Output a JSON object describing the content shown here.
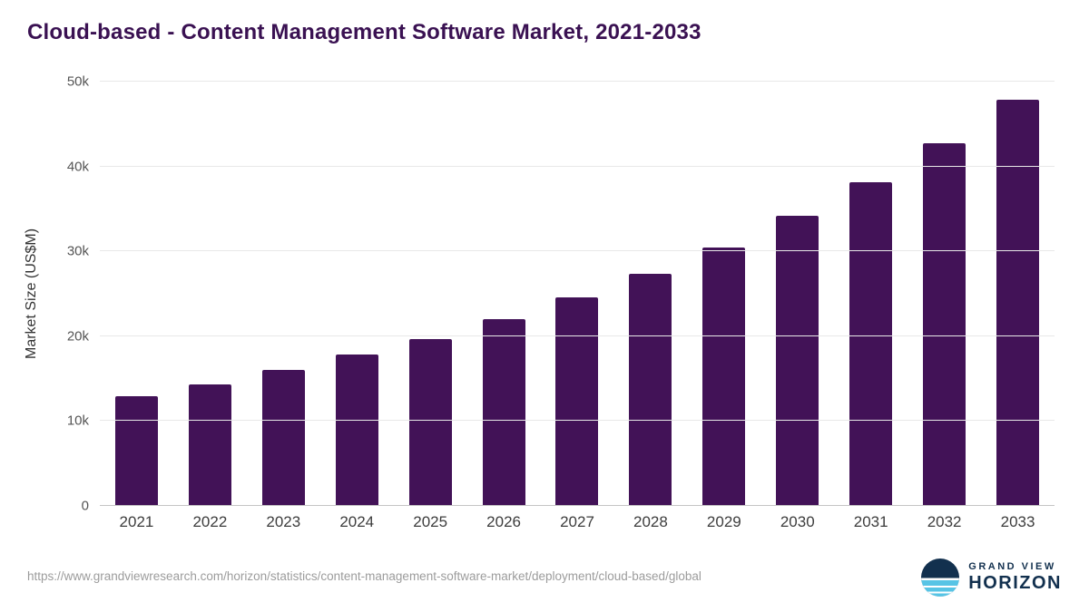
{
  "chart_data": {
    "type": "bar",
    "title": "Cloud-based - Content Management Software Market, 2021-2033",
    "categories": [
      "2021",
      "2022",
      "2023",
      "2024",
      "2025",
      "2026",
      "2027",
      "2028",
      "2029",
      "2030",
      "2031",
      "2032",
      "2033"
    ],
    "values": [
      12900,
      14300,
      16000,
      17800,
      19700,
      22000,
      24600,
      27400,
      30500,
      34200,
      38100,
      42700,
      47900
    ],
    "xlabel": "",
    "ylabel": "Market Size (US$M)",
    "ylim": [
      0,
      50000
    ],
    "yticks": [
      0,
      10000,
      20000,
      30000,
      40000,
      50000
    ],
    "ytick_labels": [
      "0",
      "10k",
      "20k",
      "30k",
      "40k",
      "50k"
    ],
    "grid": true,
    "legend": "none",
    "bar_color": "#421257"
  },
  "footer": {
    "source_url": "https://www.grandviewresearch.com/horizon/statistics/content-management-software-market/deployment/cloud-based/global",
    "brand_line1": "GRAND VIEW",
    "brand_line2": "HORIZON"
  },
  "colors": {
    "title": "#3a1152",
    "bar": "#421257",
    "brand_navy": "#12304e",
    "brand_lightblue": "#57c4e5",
    "gridline": "#e8e8e8"
  }
}
